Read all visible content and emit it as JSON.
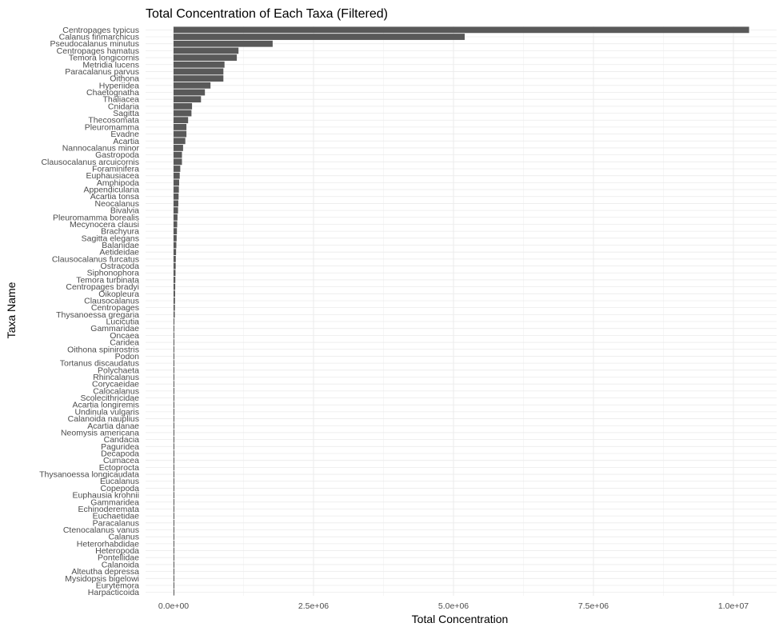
{
  "chart_data": {
    "type": "bar",
    "orientation": "horizontal",
    "title": "Total Concentration of Each Taxa (Filtered)",
    "xlabel": "Total Concentration",
    "ylabel": "Taxa Name",
    "xlim": [
      0,
      10500000
    ],
    "x_ticks": [
      0,
      2500000,
      5000000,
      7500000,
      10000000
    ],
    "x_tick_labels": [
      "0.0e+00",
      "2.5e+06",
      "5.0e+06",
      "7.5e+06",
      "1.0e+07"
    ],
    "grid": true,
    "bar_color": "#595959",
    "categories": [
      "Centropages typicus",
      "Calanus finmarchicus",
      "Pseudocalanus minutus",
      "Centropages hamatus",
      "Temora longicornis",
      "Metridia lucens",
      "Paracalanus parvus",
      "Oithona",
      "Hyperiidea",
      "Chaetognatha",
      "Thaliacea",
      "Cnidaria",
      "Sagitta",
      "Thecosomata",
      "Pleuromamma",
      "Evadne",
      "Acartia",
      "Nannocalanus minor",
      "Gastropoda",
      "Clausocalanus arcuicornis",
      "Foraminifera",
      "Euphausiacea",
      "Amphipoda",
      "Appendicularia",
      "Acartia tonsa",
      "Neocalanus",
      "Bivalvia",
      "Pleuromamma borealis",
      "Mecynocera clausi",
      "Brachyura",
      "Sagitta elegans",
      "Balanidae",
      "Aetideidae",
      "Clausocalanus furcatus",
      "Ostracoda",
      "Siphonophora",
      "Temora turbinata",
      "Centropages bradyi",
      "Oikopleura",
      "Clausocalanus",
      "Centropages",
      "Thysanoessa gregaria",
      "Lucicutia",
      "Gammaridae",
      "Oncaea",
      "Caridea",
      "Oithona spinirostris",
      "Podon",
      "Tortanus discaudatus",
      "Polychaeta",
      "Rhincalanus",
      "Corycaeidae",
      "Calocalanus",
      "Scolecithricidae",
      "Acartia longiremis",
      "Undinula vulgaris",
      "Calanoida nauplius",
      "Acartia danae",
      "Neomysis americana",
      "Candacia",
      "Paguridea",
      "Decapoda",
      "Cumacea",
      "Ectoprocta",
      "Thysanoessa longicaudata",
      "Eucalanus",
      "Copepoda",
      "Euphausia krohnii",
      "Gammaridea",
      "Echinoderemata",
      "Euchaetidae",
      "Paracalanus",
      "Ctenocalanus vanus",
      "Calanus",
      "Heterorhabdidae",
      "Heteropoda",
      "Pontellidae",
      "Calanoida",
      "Alteutha depressa",
      "Mysidopsis bigelowi",
      "Eurytemora",
      "Harpacticoida"
    ],
    "values": [
      10280000,
      5200000,
      1770000,
      1160000,
      1130000,
      910000,
      890000,
      890000,
      660000,
      560000,
      490000,
      330000,
      320000,
      260000,
      230000,
      230000,
      210000,
      170000,
      150000,
      150000,
      120000,
      110000,
      100000,
      95000,
      90000,
      85000,
      80000,
      70000,
      65000,
      60000,
      55000,
      50000,
      45000,
      40000,
      38000,
      35000,
      32000,
      30000,
      28000,
      26000,
      24000,
      22000,
      15000,
      13000,
      12000,
      11000,
      10000,
      9500,
      9000,
      8500,
      8000,
      7500,
      7000,
      6500,
      6000,
      5500,
      5000,
      4800,
      4600,
      4400,
      4200,
      4000,
      3800,
      3600,
      3400,
      3200,
      3000,
      2800,
      2600,
      2400,
      2200,
      0,
      0,
      0,
      0,
      0,
      0,
      0,
      0,
      0,
      0,
      0
    ]
  }
}
